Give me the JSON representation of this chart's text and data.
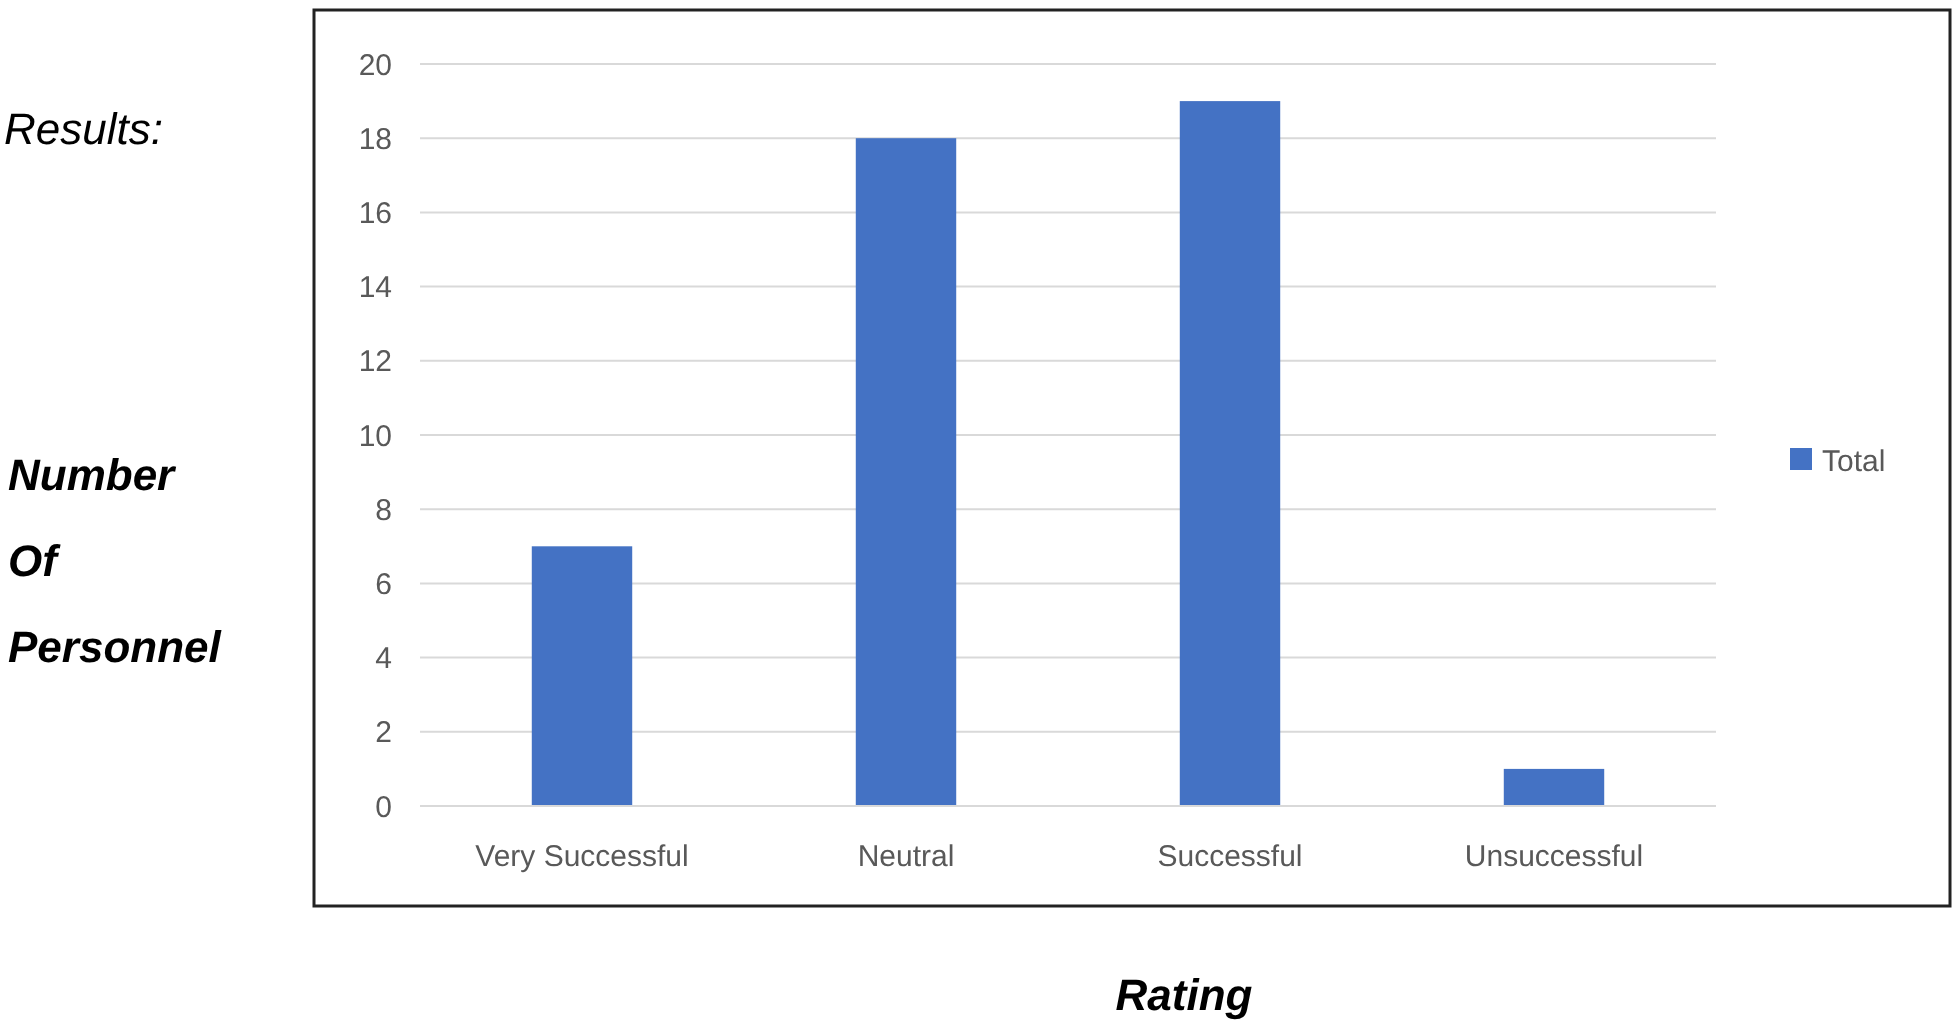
{
  "chart_data": {
    "type": "bar",
    "xlabel": "Rating",
    "ylabel": "Number\nOf\nPersonnel",
    "annotations": [
      "Results:"
    ],
    "categories": [
      "Very Successful",
      "Neutral",
      "Successful",
      "Unsuccessful"
    ],
    "series": [
      {
        "name": "Total",
        "color": "#4472c4",
        "values": [
          7,
          18,
          19,
          1
        ]
      }
    ],
    "ylim": [
      0,
      20
    ],
    "yticks": [
      0,
      2,
      4,
      6,
      8,
      10,
      12,
      14,
      16,
      18,
      20
    ],
    "grid": "y",
    "legend": "right"
  }
}
